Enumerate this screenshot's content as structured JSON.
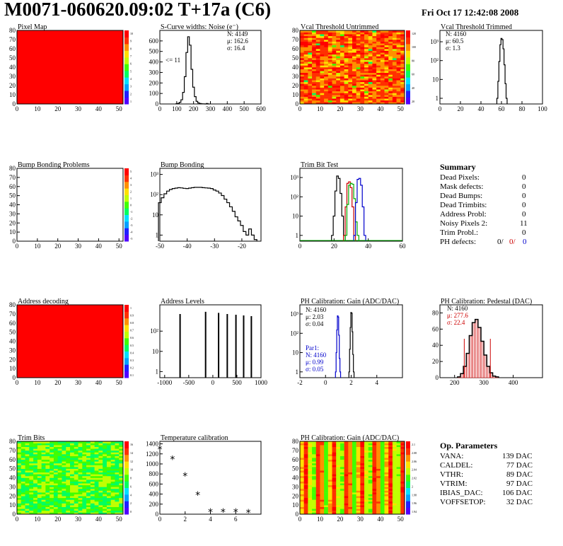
{
  "header": {
    "title": "M0071-060620.09:02 T+17a (C6)",
    "date": "Fri Oct 17 12:42:08 2008"
  },
  "colors": {
    "map_red": "#ff0000",
    "hist_line": "#000000",
    "blue": "#0000cc",
    "red": "#cc0000",
    "green": "#00aa00"
  },
  "chart_data": [
    {
      "id": "pixel-map",
      "type": "heatmap",
      "title": "Pixel Map",
      "x_ticks": [
        "0",
        "10",
        "20",
        "30",
        "40",
        "50"
      ],
      "y_ticks": [
        "0",
        "10",
        "20",
        "30",
        "40",
        "50",
        "60",
        "70",
        "80"
      ],
      "xlim": [
        0,
        52
      ],
      "ylim": [
        0,
        80
      ],
      "colorbar_ticks": [
        "10",
        "9",
        "8",
        "7",
        "6",
        "5",
        "4",
        "3",
        "2",
        "1"
      ],
      "fill": "uniform",
      "value": 10
    },
    {
      "id": "scurve-noise",
      "type": "line",
      "title": "S-Curve widths: Noise (e⁻)",
      "x_ticks": [
        "0",
        "100",
        "200",
        "300",
        "400",
        "500",
        "600"
      ],
      "y_ticks": [
        "0",
        "100",
        "200",
        "300",
        "400",
        "500",
        "600"
      ],
      "xlim": [
        0,
        600
      ],
      "ylim": [
        0,
        700
      ],
      "stats": [
        "N: 4149",
        "μ: 162.6",
        "σ: 16.4"
      ],
      "annotation": "<= 11",
      "x": [
        100,
        110,
        120,
        130,
        140,
        150,
        160,
        170,
        180,
        190,
        200,
        210,
        220,
        230,
        240,
        250,
        260,
        270,
        280,
        290
      ],
      "y": [
        2,
        5,
        15,
        40,
        110,
        260,
        490,
        640,
        560,
        330,
        160,
        70,
        25,
        10,
        4,
        2,
        1,
        0,
        4,
        0
      ]
    },
    {
      "id": "vcal-untrimmed",
      "type": "heatmap",
      "title": "Vcal Threshold Untrimmed",
      "x_ticks": [
        "0",
        "10",
        "20",
        "30",
        "40",
        "50"
      ],
      "y_ticks": [
        "0",
        "10",
        "20",
        "30",
        "40",
        "50",
        "60",
        "70",
        "80"
      ],
      "xlim": [
        0,
        52
      ],
      "ylim": [
        0,
        80
      ],
      "colorbar_ticks": [
        "120",
        "100",
        "80",
        "60",
        "40",
        "20"
      ],
      "fill": "noise-orange"
    },
    {
      "id": "vcal-trimmed",
      "type": "line",
      "log_y": true,
      "title": "Vcal Threshold Trimmed",
      "x_ticks": [
        "0",
        "20",
        "40",
        "60",
        "80",
        "100"
      ],
      "y_ticks": [
        "1",
        "10",
        "10²",
        "10³"
      ],
      "xlim": [
        0,
        100
      ],
      "ylim": [
        0.5,
        4000
      ],
      "stats": [
        "N: 4160",
        "μ: 60.5",
        "σ: 1.3"
      ],
      "x": [
        56,
        57,
        58,
        59,
        60,
        61,
        62,
        63,
        64,
        65
      ],
      "y": [
        1,
        8,
        90,
        700,
        1500,
        1300,
        420,
        60,
        6,
        1
      ]
    },
    {
      "id": "bump-bonding-problems",
      "type": "heatmap",
      "title": "Bump Bonding Problems",
      "x_ticks": [
        "0",
        "10",
        "20",
        "30",
        "40",
        "50"
      ],
      "y_ticks": [
        "0",
        "10",
        "20",
        "30",
        "40",
        "50",
        "60",
        "70",
        "80"
      ],
      "xlim": [
        0,
        52
      ],
      "ylim": [
        0,
        80
      ],
      "colorbar_ticks": [
        "5",
        "4",
        "3",
        "2",
        "1",
        "0",
        "-1",
        "-2",
        "-3",
        "-4",
        "-5"
      ],
      "fill": "empty"
    },
    {
      "id": "bump-bonding",
      "type": "line",
      "log_y": true,
      "title": "Bump Bonding",
      "x_ticks": [
        "-50",
        "-40",
        "-30",
        "-20"
      ],
      "y_ticks": [
        "1",
        "10",
        "10²",
        "10³"
      ],
      "xlim": [
        -50,
        -13
      ],
      "ylim": [
        0.5,
        2000
      ],
      "x": [
        -50,
        -49,
        -48,
        -47,
        -46,
        -45,
        -44,
        -43,
        -42,
        -41,
        -40,
        -39,
        -38,
        -37,
        -36,
        -35,
        -34,
        -33,
        -32,
        -31,
        -30,
        -29,
        -28,
        -27,
        -26,
        -25,
        -24,
        -23,
        -22,
        -21,
        -20,
        -19,
        -18,
        -17,
        -16,
        -15
      ],
      "y": [
        40,
        70,
        110,
        150,
        180,
        200,
        210,
        220,
        215,
        205,
        200,
        210,
        220,
        230,
        230,
        230,
        220,
        215,
        210,
        200,
        170,
        150,
        120,
        90,
        60,
        40,
        25,
        15,
        8,
        5,
        3,
        1.5,
        1,
        2,
        1,
        0.6
      ]
    },
    {
      "id": "trim-bit-test",
      "type": "line",
      "log_y": true,
      "title": "Trim Bit Test",
      "x_ticks": [
        "0",
        "20",
        "40",
        "60"
      ],
      "y_ticks": [
        "1",
        "10",
        "10²",
        "10³"
      ],
      "xlim": [
        0,
        60
      ],
      "ylim": [
        0.5,
        3000
      ],
      "series": [
        {
          "color": "#000000",
          "x": [
            19,
            20,
            21,
            22,
            23,
            24,
            25,
            26
          ],
          "y": [
            1,
            10,
            200,
            1200,
            900,
            150,
            10,
            1
          ]
        },
        {
          "color": "#cc0000",
          "x": [
            26,
            27,
            28,
            29,
            30,
            31,
            32
          ],
          "y": [
            1,
            30,
            500,
            600,
            300,
            30,
            1
          ]
        },
        {
          "color": "#00aa00",
          "x": [
            27,
            28,
            29,
            30,
            31,
            32,
            33,
            34
          ],
          "y": [
            1,
            40,
            400,
            500,
            450,
            80,
            5,
            1
          ]
        },
        {
          "color": "#0000cc",
          "x": [
            32,
            33,
            34,
            35,
            36,
            37,
            38
          ],
          "y": [
            1,
            50,
            800,
            900,
            400,
            30,
            1
          ]
        }
      ]
    },
    {
      "id": "address-decoding",
      "type": "heatmap",
      "title": "Address decoding",
      "x_ticks": [
        "0",
        "10",
        "20",
        "30",
        "40",
        "50"
      ],
      "y_ticks": [
        "0",
        "10",
        "20",
        "30",
        "40",
        "50",
        "60",
        "70",
        "80"
      ],
      "xlim": [
        0,
        52
      ],
      "ylim": [
        0,
        80
      ],
      "colorbar_ticks": [
        "1",
        "0.9",
        "0.8",
        "0.7",
        "0.6",
        "0.5",
        "0.4",
        "0.3",
        "0.2",
        "0.1"
      ],
      "fill": "uniform",
      "value": 1
    },
    {
      "id": "address-levels",
      "type": "line",
      "log_y": true,
      "title": "Address Levels",
      "x_ticks": [
        "-1000",
        "-500",
        "0",
        "500",
        "1000"
      ],
      "y_ticks": [
        "1",
        "10",
        "10²"
      ],
      "xlim": [
        -1100,
        1000
      ],
      "ylim": [
        0.5,
        2000
      ],
      "x": [
        -680,
        -150,
        120,
        300,
        480,
        640,
        800
      ],
      "y": [
        700,
        900,
        800,
        700,
        650,
        600,
        550
      ]
    },
    {
      "id": "ph-gain",
      "type": "line",
      "log_y": true,
      "title": "PH Calibration: Gain (ADC/DAC)",
      "x_ticks": [
        "-2",
        "0",
        "2",
        "4"
      ],
      "y_ticks": [
        "1",
        "10",
        "10²",
        "10³"
      ],
      "xlim": [
        -2,
        6
      ],
      "ylim": [
        0.5,
        3000
      ],
      "stats": [
        "N: 4160",
        "μ: 2.03",
        "σ: 0.04"
      ],
      "stats2_title": "Par1:",
      "stats2": [
        "N: 4160",
        "μ: 0.99",
        "σ: 0.05"
      ],
      "series": [
        {
          "color": "#000000",
          "x": [
            1.85,
            1.9,
            1.95,
            2.0,
            2.05,
            2.1,
            2.15,
            2.2
          ],
          "y": [
            1,
            15,
            200,
            1200,
            1100,
            120,
            8,
            1
          ]
        },
        {
          "color": "#0000cc",
          "x": [
            0.8,
            0.85,
            0.9,
            0.95,
            1.0,
            1.05,
            1.1,
            1.15
          ],
          "y": [
            1,
            10,
            150,
            800,
            700,
            80,
            5,
            1
          ]
        }
      ]
    },
    {
      "id": "ph-pedestal",
      "type": "bar",
      "title": "PH Calibration: Pedestal (DAC)",
      "x_ticks": [
        "200",
        "300",
        "400"
      ],
      "y_ticks": [
        "0",
        "20",
        "40",
        "60",
        "80"
      ],
      "xlim": [
        150,
        500
      ],
      "ylim": [
        0,
        90
      ],
      "stats": [
        "N: 4160",
        "μ: 277.6",
        "σ: 22.4"
      ],
      "x": [
        215,
        225,
        235,
        245,
        255,
        265,
        275,
        285,
        295,
        305,
        315,
        325,
        335,
        345
      ],
      "y": [
        1,
        5,
        14,
        30,
        52,
        68,
        72,
        62,
        45,
        28,
        14,
        6,
        2,
        1
      ]
    },
    {
      "id": "trim-bits",
      "type": "heatmap",
      "title": "Trim Bits",
      "x_ticks": [
        "0",
        "10",
        "20",
        "30",
        "40",
        "50"
      ],
      "y_ticks": [
        "0",
        "10",
        "20",
        "30",
        "40",
        "50",
        "60",
        "70",
        "80"
      ],
      "xlim": [
        0,
        52
      ],
      "ylim": [
        0,
        80
      ],
      "colorbar_ticks": [
        "16",
        "14",
        "12",
        "10",
        "8",
        "6",
        "4",
        "2",
        "0"
      ],
      "fill": "noise-green"
    },
    {
      "id": "temperature-calibration",
      "type": "scatter",
      "title": "Temperature calibration",
      "x_ticks": [
        "0",
        "2",
        "4",
        "6"
      ],
      "y_ticks": [
        "0",
        "200",
        "400",
        "600",
        "800",
        "1000",
        "1200",
        "1400"
      ],
      "xlim": [
        0,
        8
      ],
      "ylim": [
        0,
        1450
      ],
      "x": [
        0,
        1,
        2,
        3,
        4,
        5,
        6,
        7
      ],
      "y": [
        1290,
        1090,
        760,
        380,
        40,
        40,
        40,
        30
      ]
    },
    {
      "id": "ph-gain-map",
      "type": "heatmap",
      "title": "PH Calibration: Gain (ADC/DAC)",
      "x_ticks": [
        "0",
        "10",
        "20",
        "30",
        "40",
        "50"
      ],
      "y_ticks": [
        "0",
        "10",
        "20",
        "30",
        "40",
        "50",
        "60",
        "70",
        "80"
      ],
      "xlim": [
        0,
        52
      ],
      "ylim": [
        0,
        80
      ],
      "colorbar_ticks": [
        "2.1",
        "2.08",
        "2.06",
        "2.04",
        "2.02",
        "2",
        "1.98",
        "1.96",
        "1.94"
      ],
      "fill": "column-stripes"
    }
  ],
  "summary": {
    "title": "Summary",
    "rows": [
      {
        "label": "Dead Pixels:",
        "value": "0"
      },
      {
        "label": "Mask defects:",
        "value": "0"
      },
      {
        "label": "Dead Bumps:",
        "value": "0"
      },
      {
        "label": "Dead Trimbits:",
        "value": "0"
      },
      {
        "label": "Address Probl:",
        "value": "0"
      },
      {
        "label": "Noisy Pixels 2:",
        "value": "11"
      },
      {
        "label": "Trim Probl.:",
        "value": "0"
      }
    ],
    "ph_label": "PH defects:",
    "ph_values": [
      "0/",
      "0/",
      "0"
    ]
  },
  "op_params": {
    "title": "Op. Parameters",
    "rows": [
      {
        "label": "VANA:",
        "value": "139 DAC"
      },
      {
        "label": "CALDEL:",
        "value": "77 DAC"
      },
      {
        "label": "VTHR:",
        "value": "89 DAC"
      },
      {
        "label": "VTRIM:",
        "value": "97 DAC"
      },
      {
        "label": "IBIAS_DAC:",
        "value": "106 DAC"
      },
      {
        "label": "VOFFSETOP:",
        "value": "32 DAC"
      }
    ]
  }
}
